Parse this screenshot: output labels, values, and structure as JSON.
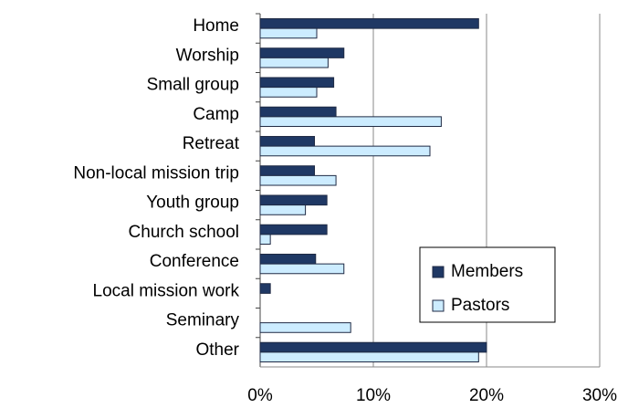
{
  "chart_data": {
    "type": "bar",
    "orientation": "horizontal",
    "categories": [
      "Home",
      "Worship",
      "Small group",
      "Camp",
      "Retreat",
      "Non-local mission trip",
      "Youth group",
      "Church school",
      "Conference",
      "Local mission work",
      "Seminary",
      "Other"
    ],
    "series": [
      {
        "name": "Members",
        "color": "#1f3864",
        "values": [
          19.3,
          7.4,
          6.5,
          6.7,
          4.8,
          4.8,
          5.9,
          5.9,
          4.9,
          0.9,
          0,
          20
        ]
      },
      {
        "name": "Pastors",
        "color": "#ccecff",
        "values": [
          5,
          6,
          5,
          16,
          15,
          6.7,
          4,
          0.9,
          7.4,
          0,
          8,
          19.3
        ]
      }
    ],
    "xlim": [
      0,
      30
    ],
    "xticks": [
      {
        "value": 0,
        "label": "0%"
      },
      {
        "value": 10,
        "label": "10%"
      },
      {
        "value": 20,
        "label": "20%"
      },
      {
        "value": 30,
        "label": "30%"
      }
    ],
    "grid": true,
    "legend": "lower right"
  }
}
